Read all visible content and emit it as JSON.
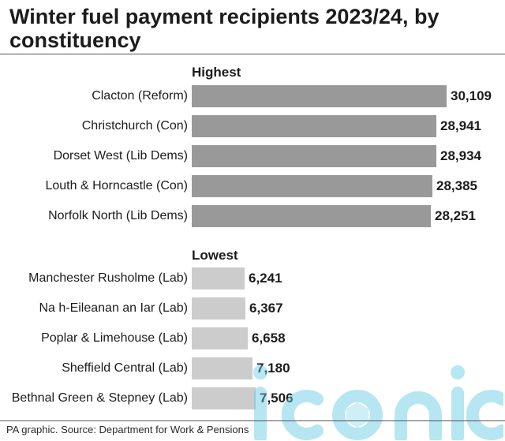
{
  "title": "Winter fuel payment recipients 2023/24, by constituency",
  "source": "PA graphic. Source: Department for Work & Pensions",
  "colors": {
    "highest_bar": "#999999",
    "lowest_bar": "#cccccc",
    "watermark": "#5ec9e3"
  },
  "chart_data": {
    "type": "bar",
    "orientation": "horizontal",
    "title": "Winter fuel payment recipients 2023/24, by constituency",
    "xlim": [
      0,
      30109
    ],
    "groups": [
      {
        "name": "Highest",
        "categories": [
          "Clacton (Reform)",
          "Christchurch (Con)",
          "Dorset West (Lib Dems)",
          "Louth & Horncastle (Con)",
          "Norfolk North (Lib Dems)"
        ],
        "values": [
          30109,
          28941,
          28934,
          28385,
          28251
        ],
        "labels": [
          "30,109",
          "28,941",
          "28,934",
          "28,385",
          "28,251"
        ]
      },
      {
        "name": "Lowest",
        "categories": [
          "Manchester Rusholme (Lab)",
          "Na h-Eileanan an Iar (Lab)",
          "Poplar & Limehouse (Lab)",
          "Sheffield Central (Lab)",
          "Bethnal Green & Stepney (Lab)"
        ],
        "values": [
          6241,
          6367,
          6658,
          7180,
          7506
        ],
        "labels": [
          "6,241",
          "6,367",
          "6,658",
          "7,180",
          "7,506"
        ]
      }
    ]
  }
}
